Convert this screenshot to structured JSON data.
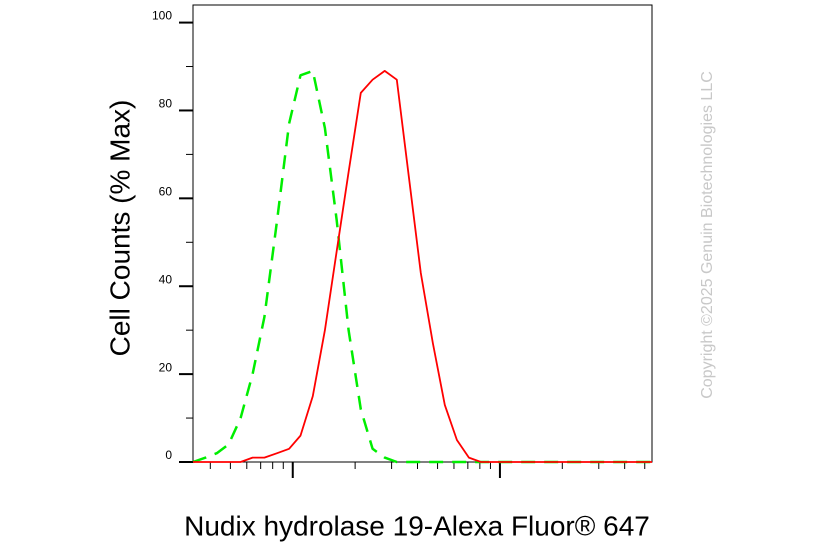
{
  "chart_data": {
    "type": "line",
    "y_label": "Cell Counts (% Max)",
    "x_label": "Nudix hydrolase 19-Alexa Fluor® 647",
    "watermark": "Copyright ©2025 Genuin Biotechnologies LLC",
    "x_scale": "log",
    "x": [
      0.33,
      0.38,
      0.43,
      0.49,
      0.56,
      0.64,
      0.73,
      0.84,
      0.96,
      1.09,
      1.25,
      1.43,
      1.63,
      1.86,
      2.13,
      2.43,
      2.78,
      3.18,
      3.63,
      4.15,
      4.75,
      5.42,
      6.2,
      7.08,
      8.09,
      9.25,
      10.6,
      17.4,
      30.4,
      54.2
    ],
    "series": [
      {
        "color": "#00ee00",
        "dashed": true,
        "values": [
          0,
          1,
          2,
          4,
          10,
          20,
          33,
          55,
          77,
          88,
          89,
          76,
          55,
          30,
          12,
          3,
          1,
          0,
          0,
          0,
          0,
          0,
          0,
          0,
          0,
          0,
          0,
          0,
          0,
          0
        ]
      },
      {
        "color": "#ff0000",
        "dashed": false,
        "values": [
          0,
          0,
          0,
          0,
          0,
          1,
          1,
          2,
          3,
          6,
          15,
          30,
          48,
          66,
          84,
          87,
          89,
          87,
          65,
          43,
          27,
          13,
          5,
          1,
          0,
          0,
          0,
          0,
          0,
          0
        ]
      }
    ],
    "xlim": [
      0.33,
      54.2
    ],
    "xticks": [
      1,
      10
    ],
    "x_minor_ticks": [
      0.4,
      0.5,
      0.6,
      0.7,
      0.8,
      0.9,
      2,
      3,
      4,
      5,
      6,
      7,
      8,
      9,
      20,
      30,
      40,
      50
    ],
    "ylim": [
      0,
      104
    ],
    "yticks": [
      0,
      20,
      40,
      60,
      80,
      100
    ],
    "y_minor_ticks": [
      10,
      30,
      50,
      70,
      90
    ]
  }
}
